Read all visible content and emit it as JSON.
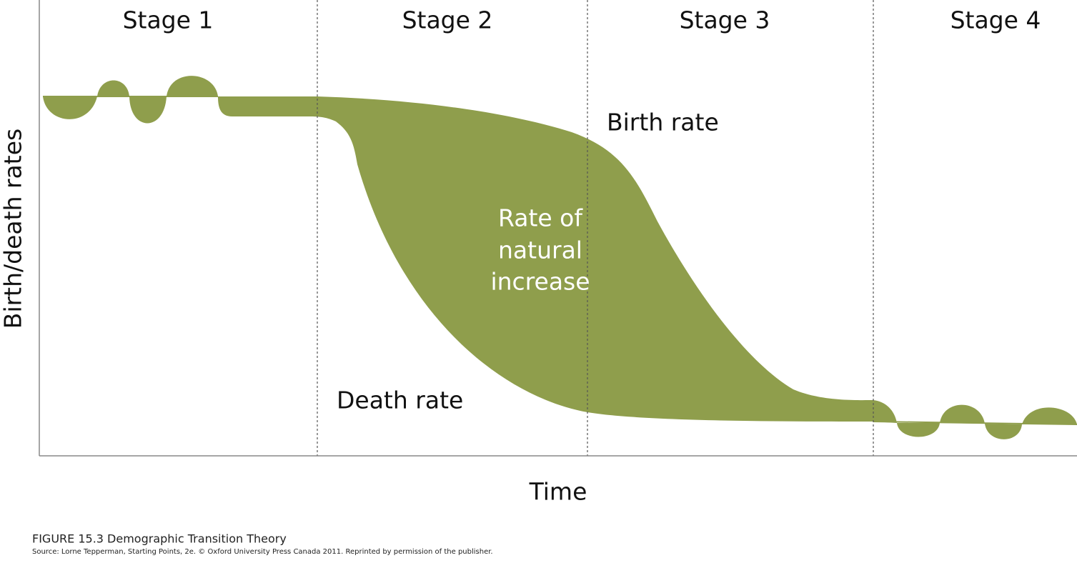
{
  "stages": [
    "Stage 1",
    "Stage 2",
    "Stage 3",
    "Stage 4"
  ],
  "labels": {
    "birth_rate": "Birth rate",
    "death_rate": "Death rate",
    "natural_increase": [
      "Rate of",
      "natural",
      "increase"
    ]
  },
  "axes": {
    "x": "Time",
    "y": "Birth/death rates"
  },
  "caption": {
    "title": "FIGURE 15.3 Demographic Transition Theory",
    "source": "Source: Lorne Tepperman, Starting Points, 2e. © Oxford University Press Canada 2011. Reprinted by permission of the publisher."
  }
}
